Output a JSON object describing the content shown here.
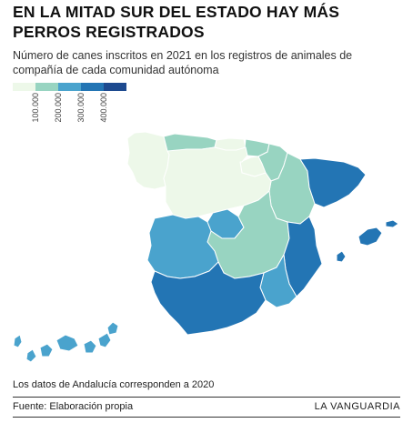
{
  "header": {
    "title": "EN LA MITAD SUR DEL ESTADO HAY MÁS PERROS REGISTRADOS",
    "subtitle": "Número de canes inscritos en 2021 en los registros de animales de compañía de cada comunidad autónoma"
  },
  "legend": {
    "colors": [
      "#edf8e9",
      "#98d4c1",
      "#4aa3cd",
      "#2375b4",
      "#1d4a8f"
    ],
    "ticks": [
      "100.000",
      "200.000",
      "300.000",
      "400.000"
    ]
  },
  "map": {
    "regions": [
      {
        "name": "Galicia",
        "color": "#edf8e9"
      },
      {
        "name": "Asturias",
        "color": "#98d4c1"
      },
      {
        "name": "Cantabria",
        "color": "#edf8e9"
      },
      {
        "name": "País Vasco",
        "color": "#98d4c1"
      },
      {
        "name": "Navarra",
        "color": "#98d4c1"
      },
      {
        "name": "La Rioja",
        "color": "#edf8e9"
      },
      {
        "name": "Aragón",
        "color": "#98d4c1"
      },
      {
        "name": "Cataluña",
        "color": "#2375b4"
      },
      {
        "name": "Castilla y León",
        "color": "#edf8e9"
      },
      {
        "name": "Madrid",
        "color": "#4aa3cd"
      },
      {
        "name": "Castilla-La Mancha",
        "color": "#98d4c1"
      },
      {
        "name": "Extremadura",
        "color": "#4aa3cd"
      },
      {
        "name": "Comunidad Valenciana",
        "color": "#2375b4"
      },
      {
        "name": "Región de Murcia",
        "color": "#4aa3cd"
      },
      {
        "name": "Andalucía",
        "color": "#2375b4"
      },
      {
        "name": "Illes Balears",
        "color": "#2375b4"
      },
      {
        "name": "Canarias",
        "color": "#4aa3cd"
      }
    ]
  },
  "footer": {
    "note": "Los datos de Andalucía corresponden a 2020",
    "source": "Fuente: Elaboración propia",
    "brand": "LA VANGUARDIA"
  }
}
